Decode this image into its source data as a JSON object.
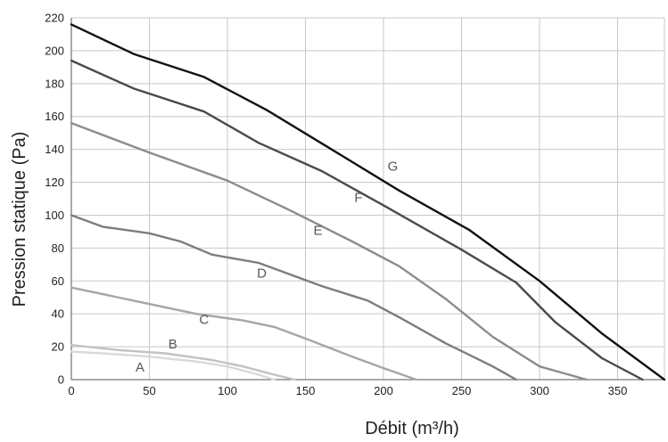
{
  "chart_data": {
    "type": "line",
    "title": "",
    "xlabel": "Débit (m³/h)",
    "ylabel": "Pression statique (Pa)",
    "xlim": [
      0,
      380
    ],
    "ylim": [
      0,
      220
    ],
    "x_ticks": [
      0,
      50,
      100,
      150,
      200,
      250,
      300,
      350
    ],
    "y_ticks": [
      0,
      20,
      40,
      60,
      80,
      100,
      120,
      140,
      160,
      180,
      200,
      220
    ],
    "x_tick_labels": [
      "0",
      "50",
      "100",
      "150",
      "200",
      "250",
      "300",
      "350"
    ],
    "y_tick_labels": [
      "0",
      "20",
      "40",
      "60",
      "80",
      "100",
      "120",
      "140",
      "160",
      "180",
      "200",
      "220"
    ],
    "grid": true,
    "legend": "none",
    "series": [
      {
        "name": "A",
        "color": "#d9d9d9",
        "label_at": [
          44,
          5
        ],
        "points": [
          [
            0,
            17
          ],
          [
            20,
            16
          ],
          [
            50,
            14
          ],
          [
            80,
            11
          ],
          [
            100,
            8
          ],
          [
            120,
            3
          ],
          [
            130,
            0
          ]
        ]
      },
      {
        "name": "B",
        "color": "#c2c2c2",
        "label_at": [
          65,
          19
        ],
        "points": [
          [
            0,
            21
          ],
          [
            30,
            18
          ],
          [
            60,
            16
          ],
          [
            90,
            12
          ],
          [
            110,
            8
          ],
          [
            130,
            3
          ],
          [
            143,
            0
          ]
        ]
      },
      {
        "name": "C",
        "color": "#a6a6a6",
        "label_at": [
          85,
          34
        ],
        "points": [
          [
            0,
            56
          ],
          [
            40,
            48
          ],
          [
            80,
            40
          ],
          [
            110,
            36
          ],
          [
            130,
            32
          ],
          [
            150,
            25
          ],
          [
            180,
            14
          ],
          [
            200,
            7
          ],
          [
            221,
            0
          ]
        ]
      },
      {
        "name": "D",
        "color": "#7d7d7d",
        "label_at": [
          122,
          62
        ],
        "points": [
          [
            0,
            100
          ],
          [
            20,
            93
          ],
          [
            50,
            89
          ],
          [
            70,
            84
          ],
          [
            90,
            76
          ],
          [
            120,
            71
          ],
          [
            140,
            64
          ],
          [
            160,
            57
          ],
          [
            190,
            48
          ],
          [
            210,
            38
          ],
          [
            240,
            22
          ],
          [
            270,
            8
          ],
          [
            285,
            0
          ]
        ]
      },
      {
        "name": "E",
        "color": "#8c8c8c",
        "label_at": [
          158,
          88
        ],
        "points": [
          [
            0,
            156
          ],
          [
            50,
            138
          ],
          [
            100,
            121
          ],
          [
            140,
            103
          ],
          [
            180,
            84
          ],
          [
            210,
            69
          ],
          [
            240,
            49
          ],
          [
            270,
            26
          ],
          [
            300,
            8
          ],
          [
            330,
            0
          ]
        ]
      },
      {
        "name": "F",
        "color": "#4a4a4a",
        "label_at": [
          184,
          108
        ],
        "points": [
          [
            0,
            194
          ],
          [
            40,
            177
          ],
          [
            85,
            163
          ],
          [
            120,
            144
          ],
          [
            160,
            127
          ],
          [
            200,
            106
          ],
          [
            250,
            79
          ],
          [
            285,
            59
          ],
          [
            310,
            35
          ],
          [
            340,
            13
          ],
          [
            366,
            0
          ]
        ]
      },
      {
        "name": "G",
        "color": "#111111",
        "label_at": [
          206,
          127
        ],
        "points": [
          [
            0,
            216
          ],
          [
            40,
            198
          ],
          [
            85,
            184
          ],
          [
            125,
            164
          ],
          [
            165,
            141
          ],
          [
            210,
            115
          ],
          [
            255,
            91
          ],
          [
            300,
            60
          ],
          [
            340,
            28
          ],
          [
            380,
            0
          ]
        ]
      }
    ]
  }
}
